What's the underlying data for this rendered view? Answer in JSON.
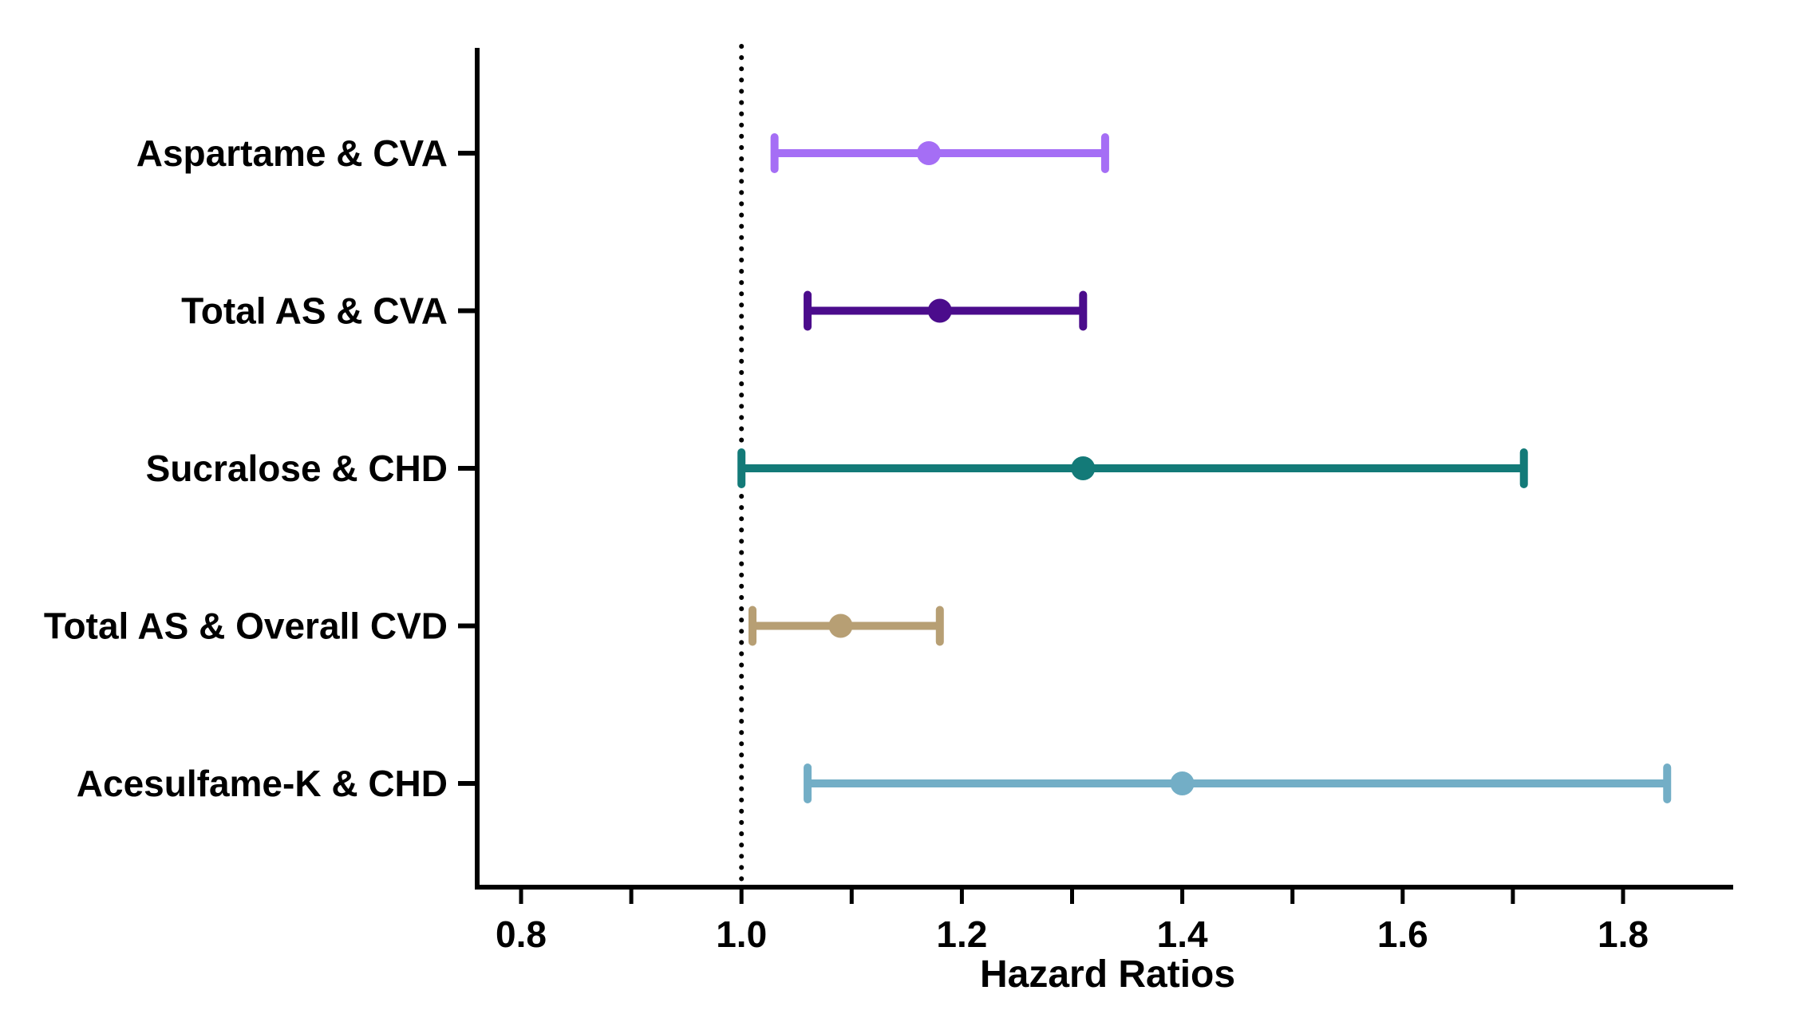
{
  "chart_data": {
    "type": "forest",
    "xlabel": "Hazard Ratios",
    "ylabel": "",
    "title": "",
    "xlim": [
      0.75,
      1.9
    ],
    "reference_line": 1.0,
    "x_ticks": [
      0.8,
      0.9,
      1.0,
      1.1,
      1.2,
      1.3,
      1.4,
      1.5,
      1.6,
      1.7,
      1.8
    ],
    "x_tick_labels": [
      "0.8",
      "",
      "1.0",
      "",
      "1.2",
      "",
      "1.4",
      "",
      "1.6",
      "",
      "1.8"
    ],
    "rows": [
      {
        "label": "Aspartame & CVA",
        "hr": 1.17,
        "lower": 1.03,
        "upper": 1.33,
        "color": "#A56EF5"
      },
      {
        "label": "Total AS & CVA",
        "hr": 1.18,
        "lower": 1.06,
        "upper": 1.31,
        "color": "#4B0C8C"
      },
      {
        "label": "Sucralose & CHD",
        "hr": 1.31,
        "lower": 1.0,
        "upper": 1.71,
        "color": "#137A78"
      },
      {
        "label": "Total AS & Overall CVD",
        "hr": 1.09,
        "lower": 1.01,
        "upper": 1.18,
        "color": "#B79F74"
      },
      {
        "label": "Acesulfame-K & CHD",
        "hr": 1.4,
        "lower": 1.06,
        "upper": 1.84,
        "color": "#73AEC6"
      }
    ]
  }
}
